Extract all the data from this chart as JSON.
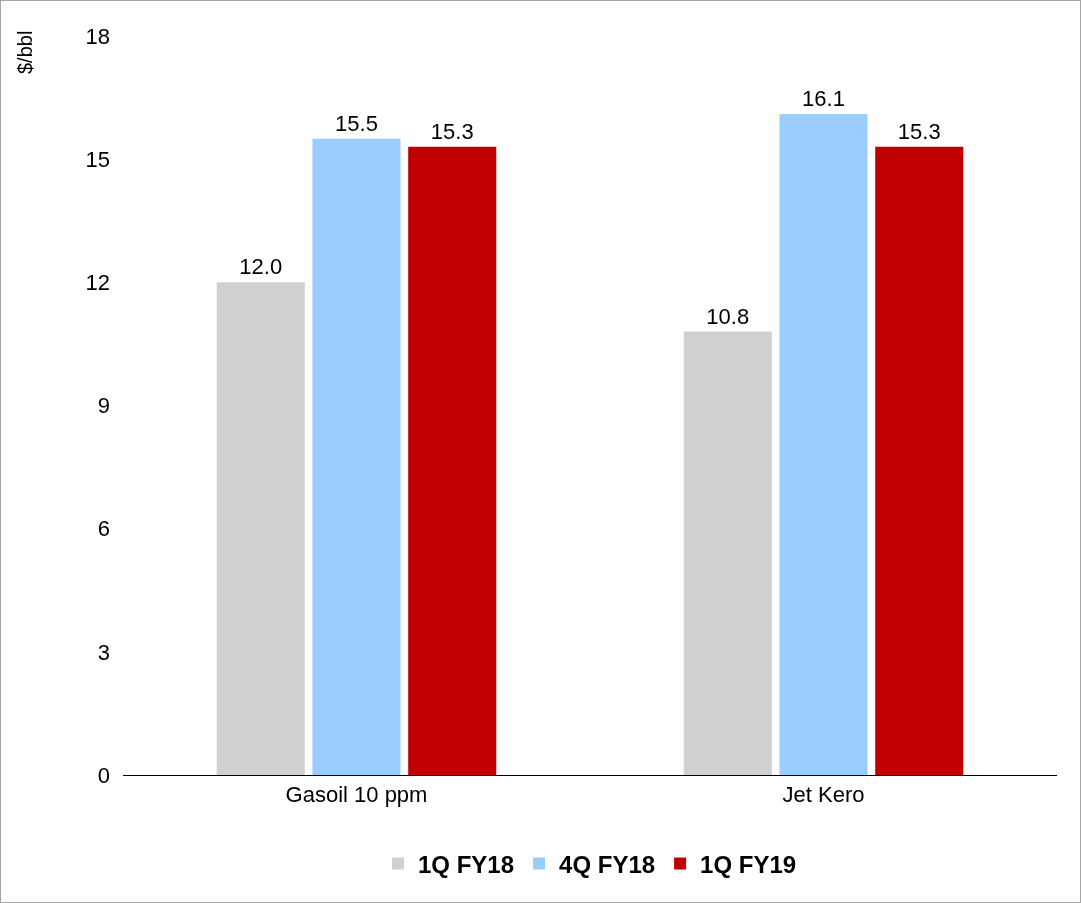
{
  "chart_data": {
    "type": "bar",
    "ylabel": "$/bbl",
    "categories": [
      "Gasoil 10 ppm",
      "Jet Kero"
    ],
    "series": [
      {
        "name": "1Q FY18",
        "color": "#d0d0d0",
        "values": [
          12.0,
          10.8
        ],
        "value_labels": [
          "12.0",
          "10.8"
        ]
      },
      {
        "name": "4Q FY18",
        "color": "#99ccff",
        "values": [
          15.5,
          16.1
        ],
        "value_labels": [
          "15.5",
          "16.1"
        ]
      },
      {
        "name": "1Q FY19",
        "color": "#c00000",
        "values": [
          15.3,
          15.3
        ],
        "value_labels": [
          "15.3",
          "15.3"
        ]
      }
    ],
    "ylim": [
      0,
      18
    ],
    "yticks": [
      0,
      3,
      6,
      9,
      12,
      15,
      18
    ],
    "grid": false,
    "legend": "bottom"
  }
}
